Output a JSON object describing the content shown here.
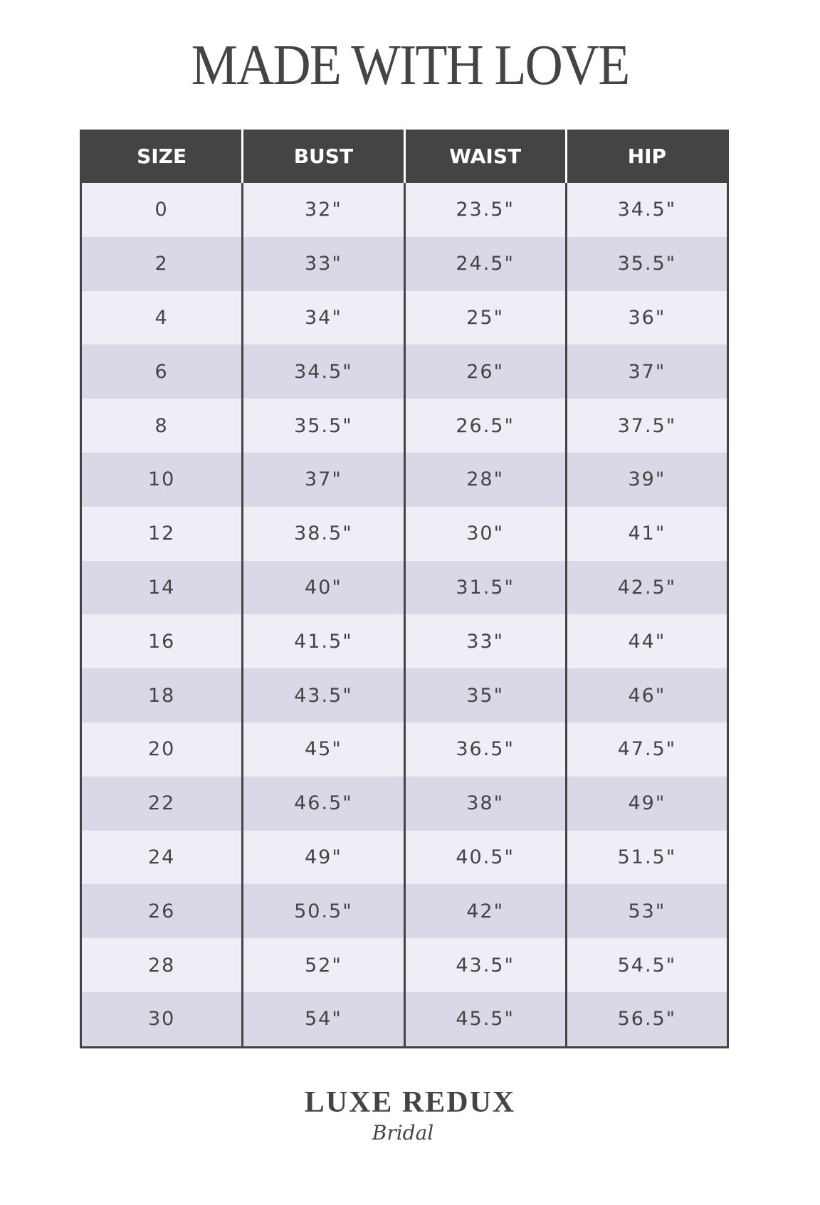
{
  "title": "MADE WITH LOVE",
  "table": {
    "headers": [
      "SIZE",
      "BUST",
      "WAIST",
      "HIP"
    ],
    "rows": [
      [
        "0",
        "32\"",
        "23.5\"",
        "34.5\""
      ],
      [
        "2",
        "33\"",
        "24.5\"",
        "35.5\""
      ],
      [
        "4",
        "34\"",
        "25\"",
        "36\""
      ],
      [
        "6",
        "34.5\"",
        "26\"",
        "37\""
      ],
      [
        "8",
        "35.5\"",
        "26.5\"",
        "37.5\""
      ],
      [
        "10",
        "37\"",
        "28\"",
        "39\""
      ],
      [
        "12",
        "38.5\"",
        "30\"",
        "41\""
      ],
      [
        "14",
        "40\"",
        "31.5\"",
        "42.5\""
      ],
      [
        "16",
        "41.5\"",
        "33\"",
        "44\""
      ],
      [
        "18",
        "43.5\"",
        "35\"",
        "46\""
      ],
      [
        "20",
        "45\"",
        "36.5\"",
        "47.5\""
      ],
      [
        "22",
        "46.5\"",
        "38\"",
        "49\""
      ],
      [
        "24",
        "49\"",
        "40.5\"",
        "51.5\""
      ],
      [
        "26",
        "50.5\"",
        "42\"",
        "53\""
      ],
      [
        "28",
        "52\"",
        "43.5\"",
        "54.5\""
      ],
      [
        "30",
        "54\"",
        "45.5\"",
        "56.5\""
      ]
    ]
  },
  "logo": {
    "main": "LUXE REDUX",
    "sub": "Bridal"
  },
  "colors": {
    "header_bg": "#444444",
    "row_light": "#efeef6",
    "row_dark": "#d9d8e6",
    "text": "#444444"
  }
}
